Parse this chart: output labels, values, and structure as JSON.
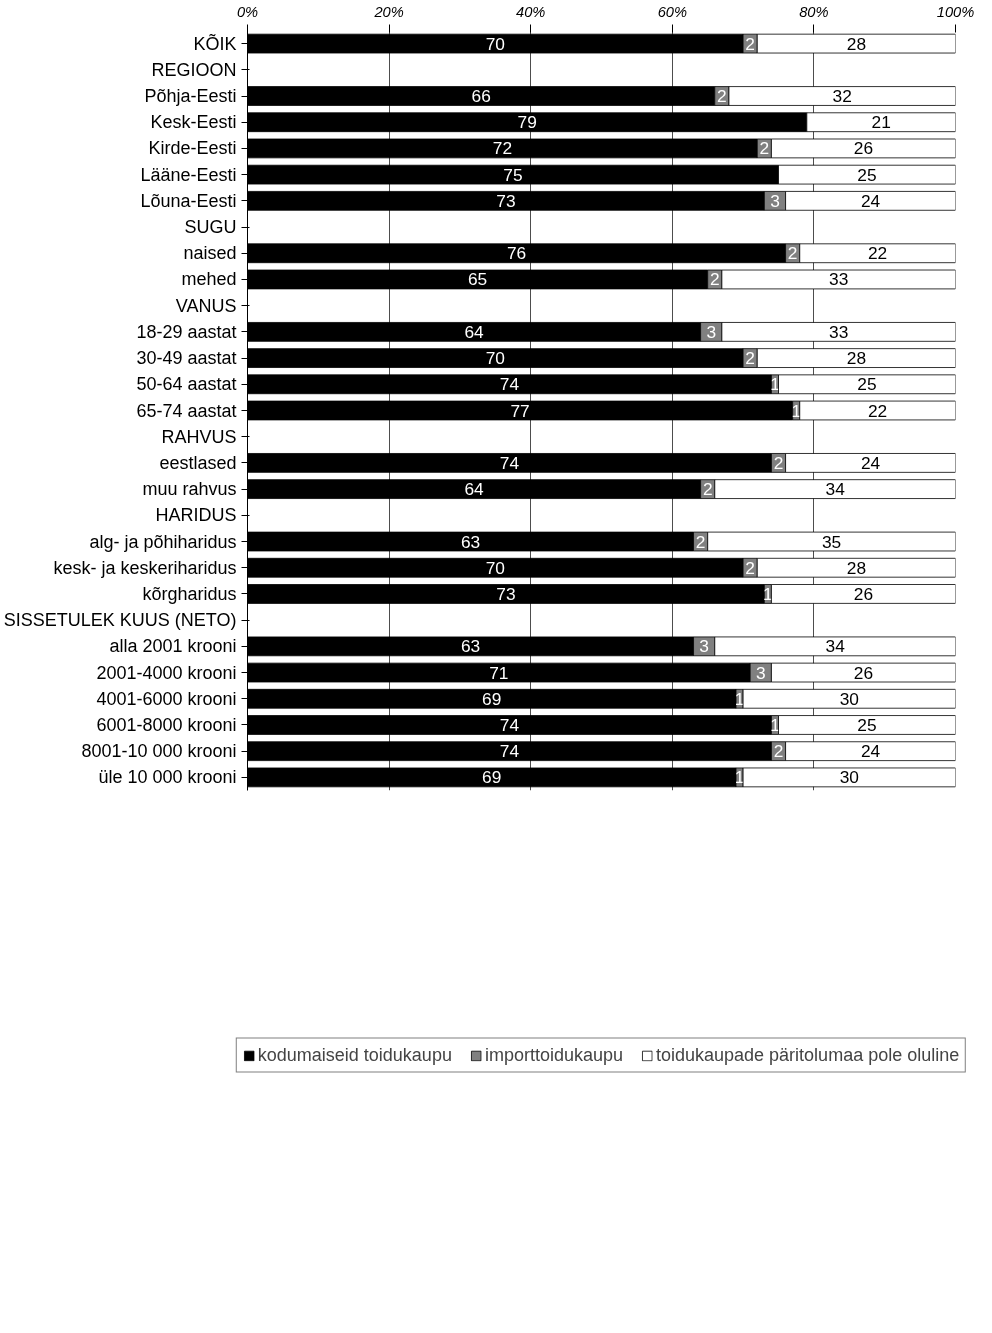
{
  "chart_data": {
    "type": "bar",
    "orientation": "horizontal",
    "stacked": true,
    "data_labels": true,
    "grid": "x",
    "legend": "bottom",
    "categories": [
      "KÕIK",
      "REGIOON",
      "Põhja-Eesti",
      "Kesk-Eesti",
      "Kirde-Eesti",
      "Lääne-Eesti",
      "Lõuna-Eesti",
      "SUGU",
      "naised",
      "mehed",
      "VANUS",
      "18-29 aastat",
      "30-49 aastat",
      "50-64 aastat",
      "65-74 aastat",
      "RAHVUS",
      "eestlased",
      "muu rahvus",
      "HARIDUS",
      "alg- ja põhiharidus",
      "kesk- ja keskeriharidus",
      "kõrgharidus",
      "SISSETULEK KUUS (NETO)",
      "alla 2001 krooni",
      "2001-4000 krooni",
      "4001-6000 krooni",
      "6001-8000 krooni",
      "8001-10 000 krooni",
      "üle 10 000 krooni"
    ],
    "series": [
      {
        "name": "kodumaiseid toidukaupu",
        "color": "#000000",
        "values": [
          70,
          null,
          66,
          79,
          72,
          75,
          73,
          null,
          76,
          65,
          null,
          64,
          70,
          74,
          77,
          null,
          74,
          64,
          null,
          63,
          70,
          73,
          null,
          63,
          71,
          69,
          74,
          74,
          69
        ]
      },
      {
        "name": "importtoidukaupu",
        "color": "#808080",
        "values": [
          2,
          null,
          2,
          null,
          2,
          null,
          3,
          null,
          2,
          2,
          null,
          3,
          2,
          1,
          1,
          null,
          2,
          2,
          null,
          2,
          2,
          1,
          null,
          3,
          3,
          1,
          1,
          2,
          1
        ]
      },
      {
        "name": "toidukaupade päritolumaa pole oluline",
        "color": "#ffffff",
        "values": [
          28,
          null,
          32,
          21,
          26,
          25,
          24,
          null,
          22,
          33,
          null,
          33,
          28,
          25,
          22,
          null,
          24,
          34,
          null,
          35,
          28,
          26,
          null,
          34,
          26,
          30,
          25,
          24,
          30
        ]
      }
    ],
    "xlim": [
      0,
      100
    ],
    "xticks": [
      {
        "value": 0,
        "label": "0%"
      },
      {
        "value": 20,
        "label": "20%"
      },
      {
        "value": 40,
        "label": "40%"
      },
      {
        "value": 60,
        "label": "60%"
      },
      {
        "value": 80,
        "label": "80%"
      },
      {
        "value": 100,
        "label": "100%"
      }
    ]
  }
}
